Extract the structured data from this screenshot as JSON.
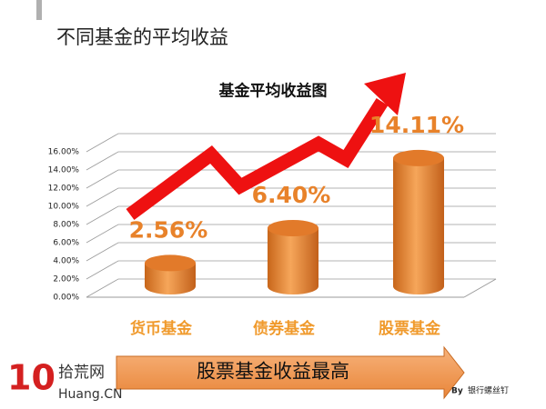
{
  "slide": {
    "title": "不同基金的平均收益",
    "banner": "股票基金收益最高",
    "logo_number": "10",
    "logo_name": "拾荒网",
    "logo_site": "Huang.CN",
    "credit_by": "By",
    "credit_author": "银行螺丝钉"
  },
  "chart_data": {
    "type": "bar",
    "title": "基金平均收益图",
    "categories": [
      "货币基金",
      "债券基金",
      "股票基金"
    ],
    "values": [
      2.56,
      6.4,
      14.11
    ],
    "value_labels": [
      "2.56%",
      "6.40%",
      "14.11%"
    ],
    "color": "#f0923a",
    "ylim": [
      0,
      16
    ],
    "yticks": [
      {
        "value": 0,
        "label": "0.00%"
      },
      {
        "value": 2,
        "label": "2.00%"
      },
      {
        "value": 4,
        "label": "4.00%"
      },
      {
        "value": 6,
        "label": "6.00%"
      },
      {
        "value": 8,
        "label": "8.00%"
      },
      {
        "value": 10,
        "label": "10.00%"
      },
      {
        "value": 12,
        "label": "12.00%"
      },
      {
        "value": 14,
        "label": "14.00%"
      },
      {
        "value": 16,
        "label": "16.00%"
      }
    ],
    "grid": true
  }
}
